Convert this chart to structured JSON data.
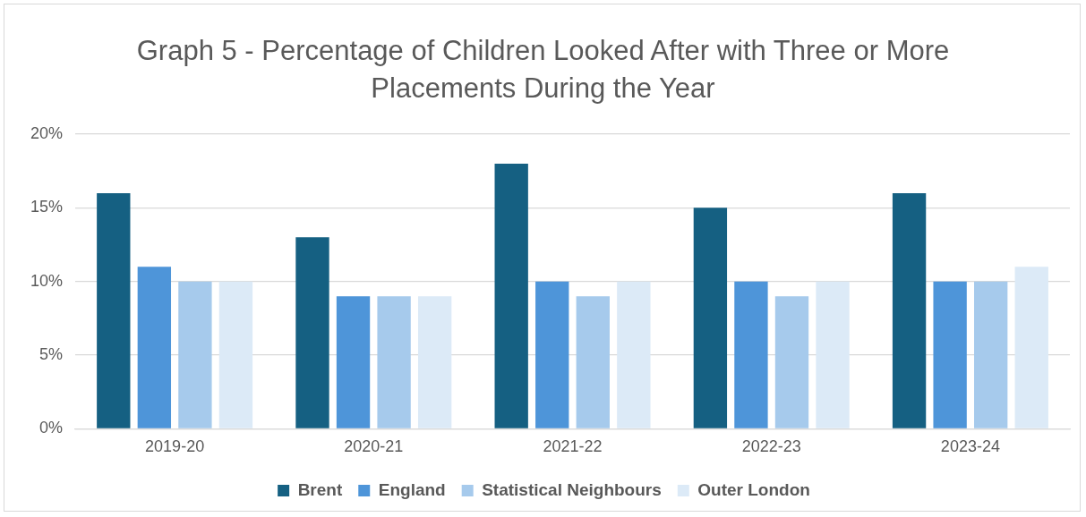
{
  "chart_data": {
    "type": "bar",
    "title": "Graph 5 - Percentage of Children Looked After with Three or More Placements During the Year",
    "categories": [
      "2019-20",
      "2020-21",
      "2021-22",
      "2022-23",
      "2023-24"
    ],
    "series": [
      {
        "name": "Brent",
        "color": "#156082",
        "values": [
          16,
          13,
          18,
          15,
          16
        ]
      },
      {
        "name": "England",
        "color": "#4e95d9",
        "values": [
          11,
          9,
          10,
          10,
          10
        ]
      },
      {
        "name": "Statistical Neighbours",
        "color": "#a6caec",
        "values": [
          10,
          9,
          9,
          9,
          10
        ]
      },
      {
        "name": "Outer London",
        "color": "#dceaf7",
        "values": [
          10,
          9,
          10,
          10,
          11
        ]
      }
    ],
    "ylim": [
      0,
      20
    ],
    "yticks": [
      {
        "value": 0,
        "label": "0%"
      },
      {
        "value": 5,
        "label": "5%"
      },
      {
        "value": 10,
        "label": "10%"
      },
      {
        "value": 15,
        "label": "15%"
      },
      {
        "value": 20,
        "label": "20%"
      }
    ],
    "grid": "y",
    "legend": "bottom"
  }
}
